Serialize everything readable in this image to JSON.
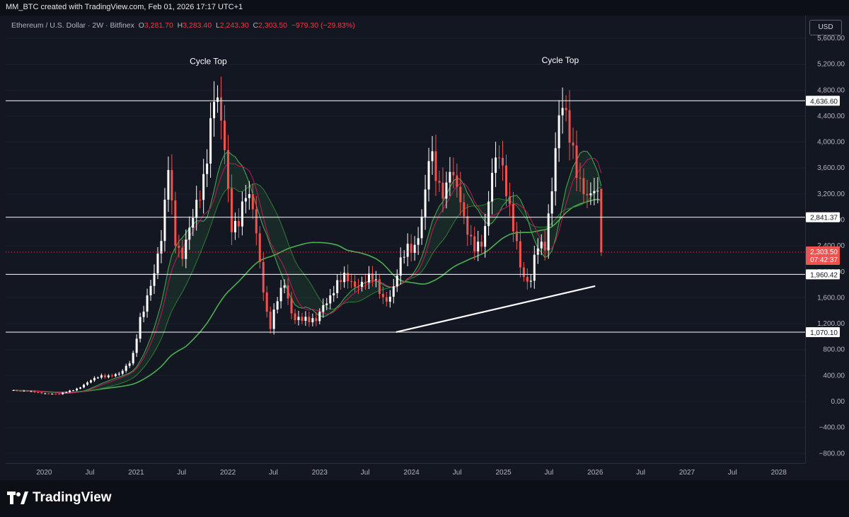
{
  "header": {
    "caption": "MM_BTC created with TradingView.com, Feb 01, 2026 17:17 UTC+1"
  },
  "legend": {
    "symbol": "Ethereum / U.S. Dollar · 2W · Bitfinex",
    "o_label": "O",
    "o": "3,281.70",
    "h_label": "H",
    "h": "3,283.40",
    "l_label": "L",
    "l": "2,243.30",
    "c_label": "C",
    "c": "2,303.50",
    "change": "−979.30 (−29.83%)"
  },
  "currency_button": "USD",
  "brand": {
    "name": "TradingView"
  },
  "colors": {
    "up": "#ffffff",
    "down": "#ef5350",
    "ma_green": "#4caf50",
    "ma_dark_green": "#2e7d32",
    "ma_red": "#c2185b",
    "background": "#131722",
    "level_line": "#ffffff"
  },
  "chart_data": {
    "type": "candlestick",
    "timeframe": "2W",
    "ylim": [
      -950,
      5950
    ],
    "y_ticks": [
      "5,600.00",
      "5,200.00",
      "4,800.00",
      "4,400.00",
      "4,000.00",
      "3,600.00",
      "3,200.00",
      "2,800.00",
      "2,400.00",
      "2,000.00",
      "1,600.00",
      "1,200.00",
      "800.00",
      "400.00",
      "0.00",
      "−400.00",
      "−800.00"
    ],
    "y_tick_values": [
      5600,
      5200,
      4800,
      4400,
      4000,
      3600,
      3200,
      2800,
      2400,
      2000,
      1600,
      1200,
      800,
      400,
      0,
      -400,
      -800
    ],
    "x_ticks": [
      "2020",
      "Jul",
      "2021",
      "Jul",
      "2022",
      "Jul",
      "2023",
      "Jul",
      "2024",
      "Jul",
      "2025",
      "Jul",
      "2026",
      "Jul",
      "2027",
      "Jul",
      "2028"
    ],
    "x_tick_dates": [
      "2020-01-01",
      "2020-07-01",
      "2021-01-01",
      "2021-07-01",
      "2022-01-01",
      "2022-07-01",
      "2023-01-01",
      "2023-07-01",
      "2024-01-01",
      "2024-07-01",
      "2025-01-01",
      "2025-07-01",
      "2026-01-01",
      "2026-07-01",
      "2027-01-01",
      "2027-07-01",
      "2028-01-01"
    ],
    "xlim": [
      "2019-08-01",
      "2028-04-15"
    ],
    "levels": [
      {
        "value": 4636.6,
        "label": "4,636.60"
      },
      {
        "value": 2841.37,
        "label": "2,841.37"
      },
      {
        "value": 1960.42,
        "label": "1,960.42"
      },
      {
        "value": 1070.1,
        "label": "1,070.10"
      }
    ],
    "last_price": {
      "value": 2303.5,
      "label": "2,303.50",
      "countdown": "07:42:37"
    },
    "annotations": [
      {
        "text": "Cycle Top",
        "date": "2021-10-15",
        "value": 5200
      },
      {
        "text": "Cycle Top",
        "date": "2025-08-15",
        "value": 5220
      }
    ],
    "trendline": {
      "start": [
        "2023-11-01",
        1070
      ],
      "end": [
        "2026-01-01",
        1780
      ]
    },
    "anchors": [
      [
        "2019-09-01",
        180
      ],
      [
        "2019-12-01",
        140
      ],
      [
        "2020-03-01",
        110
      ],
      [
        "2020-05-15",
        210
      ],
      [
        "2020-08-15",
        400
      ],
      [
        "2020-11-01",
        420
      ],
      [
        "2020-12-15",
        640
      ],
      [
        "2021-01-15",
        1300
      ],
      [
        "2021-02-15",
        1600
      ],
      [
        "2021-03-15",
        1900
      ],
      [
        "2021-04-15",
        2600
      ],
      [
        "2021-05-10",
        3900
      ],
      [
        "2021-06-01",
        2600
      ],
      [
        "2021-07-01",
        2100
      ],
      [
        "2021-08-01",
        2600
      ],
      [
        "2021-09-01",
        3200
      ],
      [
        "2021-10-01",
        3600
      ],
      [
        "2021-11-10",
        4600
      ],
      [
        "2021-12-15",
        4100
      ],
      [
        "2022-01-15",
        2800
      ],
      [
        "2022-02-15",
        2800
      ],
      [
        "2022-03-15",
        3100
      ],
      [
        "2022-04-15",
        2900
      ],
      [
        "2022-05-15",
        2000
      ],
      [
        "2022-06-15",
        1100
      ],
      [
        "2022-07-15",
        1500
      ],
      [
        "2022-08-15",
        1800
      ],
      [
        "2022-09-15",
        1350
      ],
      [
        "2022-10-15",
        1300
      ],
      [
        "2022-11-15",
        1200
      ],
      [
        "2022-12-15",
        1220
      ],
      [
        "2023-01-15",
        1550
      ],
      [
        "2023-02-15",
        1650
      ],
      [
        "2023-04-15",
        1900
      ],
      [
        "2023-06-01",
        1850
      ],
      [
        "2023-08-01",
        1850
      ],
      [
        "2023-09-15",
        1600
      ],
      [
        "2023-10-15",
        1700
      ],
      [
        "2023-11-15",
        2050
      ],
      [
        "2023-12-15",
        2300
      ],
      [
        "2024-01-15",
        2450
      ],
      [
        "2024-02-15",
        3000
      ],
      [
        "2024-03-15",
        3800
      ],
      [
        "2024-04-15",
        3200
      ],
      [
        "2024-05-15",
        3300
      ],
      [
        "2024-06-01",
        3800
      ],
      [
        "2024-07-01",
        3300
      ],
      [
        "2024-08-01",
        2600
      ],
      [
        "2024-09-01",
        2400
      ],
      [
        "2024-10-15",
        2600
      ],
      [
        "2024-11-15",
        3400
      ],
      [
        "2024-12-15",
        3700
      ],
      [
        "2025-01-15",
        3300
      ],
      [
        "2025-02-15",
        2700
      ],
      [
        "2025-03-15",
        1900
      ],
      [
        "2025-04-15",
        1700
      ],
      [
        "2025-05-15",
        2500
      ],
      [
        "2025-06-15",
        2500
      ],
      [
        "2025-07-15",
        3300
      ],
      [
        "2025-08-15",
        4400
      ],
      [
        "2025-09-01",
        4500
      ],
      [
        "2025-10-01",
        4100
      ],
      [
        "2025-11-01",
        3400
      ],
      [
        "2025-12-01",
        3000
      ],
      [
        "2026-01-10",
        3282
      ],
      [
        "2026-01-28",
        2303
      ]
    ],
    "moving_averages": [
      {
        "period": 10,
        "color": "#4caf50"
      },
      {
        "period": 20,
        "color": "#2e7d32"
      },
      {
        "period": 50,
        "color": "#4caf50"
      },
      {
        "period": 12,
        "color": "#c2185b"
      }
    ]
  }
}
